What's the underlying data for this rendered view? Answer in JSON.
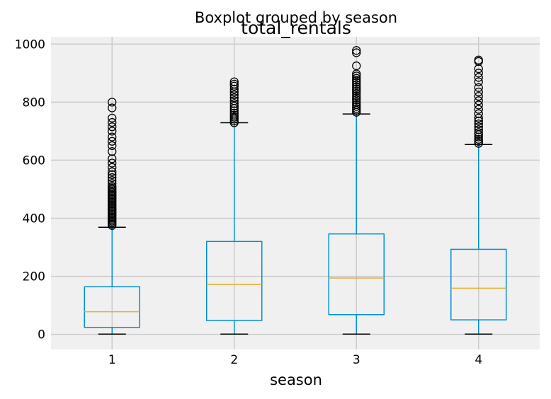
{
  "chart_data": {
    "type": "box",
    "suptitle": "Boxplot grouped by season",
    "title": "total_rentals",
    "xlabel": "season",
    "ylabel": "",
    "categories": [
      "1",
      "2",
      "3",
      "4"
    ],
    "ylim": [
      -52,
      1025
    ],
    "yticks": [
      0,
      200,
      400,
      600,
      800,
      1000
    ],
    "grid": true,
    "colors": {
      "background": "#f0f0f0",
      "grid": "#cbcbcb",
      "box": "#008fd5",
      "median": "#e5ae38",
      "whisker_cap": "#000000",
      "flier": "#000000"
    },
    "boxes": [
      {
        "category": "1",
        "whislo": 1,
        "q1": 24,
        "med": 78,
        "q3": 164,
        "whishi": 369,
        "fliers": [
          375,
          380,
          385,
          390,
          395,
          400,
          405,
          410,
          415,
          420,
          425,
          430,
          435,
          440,
          445,
          450,
          455,
          460,
          465,
          470,
          475,
          480,
          485,
          490,
          495,
          500,
          505,
          510,
          520,
          530,
          540,
          550,
          560,
          575,
          590,
          605,
          630,
          650,
          665,
          680,
          700,
          715,
          730,
          745,
          780,
          800
        ]
      },
      {
        "category": "2",
        "whislo": 1,
        "q1": 48,
        "med": 172,
        "q3": 320,
        "whishi": 729,
        "fliers": [
          729,
          735,
          742,
          748,
          755,
          762,
          770,
          778,
          786,
          795,
          805,
          815,
          825,
          835,
          845,
          855,
          862,
          870
        ]
      },
      {
        "category": "3",
        "whislo": 1,
        "q1": 68,
        "med": 194,
        "q3": 346,
        "whishi": 759,
        "fliers": [
          765,
          772,
          778,
          785,
          792,
          800,
          808,
          815,
          822,
          830,
          838,
          845,
          852,
          860,
          868,
          875,
          882,
          890,
          897,
          925,
          970,
          978
        ]
      },
      {
        "category": "4",
        "whislo": 1,
        "q1": 50,
        "med": 159,
        "q3": 293,
        "whishi": 654,
        "fliers": [
          658,
          665,
          672,
          680,
          688,
          695,
          705,
          715,
          725,
          735,
          745,
          760,
          775,
          790,
          805,
          820,
          835,
          850,
          870,
          885,
          900,
          915,
          940,
          945
        ]
      }
    ]
  }
}
